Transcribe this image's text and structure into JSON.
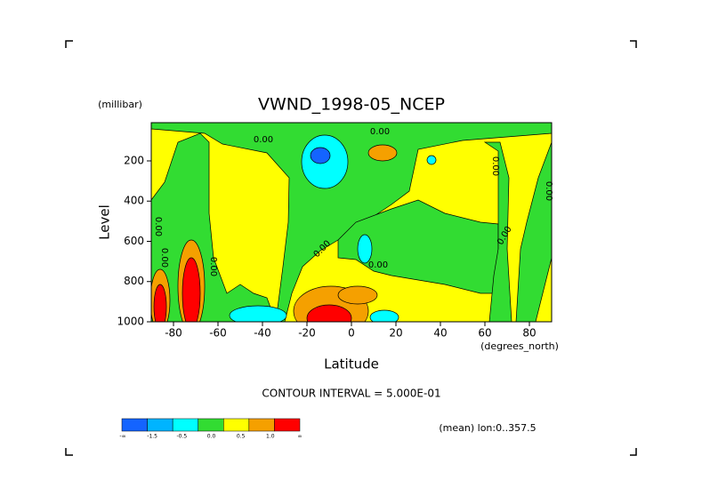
{
  "chart_data": {
    "type": "contour",
    "title": "VWND_1998-05_NCEP",
    "x_label": "Latitude",
    "y_label": "Level",
    "y_units": "(millibar)",
    "x_units": "(degrees_north)",
    "xlim": [
      -90,
      90
    ],
    "ylim": [
      1000,
      10
    ],
    "xticks": [
      -80,
      -60,
      -40,
      -20,
      0,
      20,
      40,
      60,
      80
    ],
    "yticks": [
      200,
      400,
      600,
      800,
      1000
    ],
    "contour_labels": [
      "0.00",
      "0.00",
      "0.00",
      "0.00",
      "0.00",
      "0.00",
      "0.00",
      "0.00",
      "0.00",
      "0.00"
    ],
    "contour_interval_note": "CONTOUR INTERVAL = 5.000E-01",
    "mean_note": "(mean) lon:0..357.5",
    "colorbar": {
      "colors": [
        "#1464ff",
        "#00b4ff",
        "#00ffff",
        "#32dc32",
        "#ffff00",
        "#f5a000",
        "#ff0000"
      ],
      "labels": [
        "-∞",
        "-1.5",
        "-0.5",
        "0.0",
        "0.5",
        "1.0",
        "∞"
      ]
    }
  }
}
